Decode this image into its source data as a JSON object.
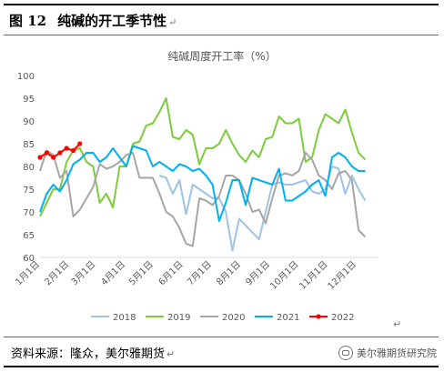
{
  "figure": {
    "number_label": "图 12",
    "title": "纯碱的开工季节性",
    "return_mark": "↵"
  },
  "source_note": {
    "text": "资料来源：隆众，美尔雅期货",
    "watermark": "美尔雅期货研究院"
  },
  "chart_data": {
    "type": "line",
    "title": "纯碱周度开工率（%）",
    "ylim": [
      60,
      100
    ],
    "yticks": [
      60,
      65,
      70,
      75,
      80,
      85,
      90,
      95,
      100
    ],
    "xlim": [
      1,
      52
    ],
    "xticks": [
      {
        "label": "1月1日",
        "week": 1
      },
      {
        "label": "2月1日",
        "week": 5.4
      },
      {
        "label": "3月1日",
        "week": 9.4
      },
      {
        "label": "4月1日",
        "week": 13.9
      },
      {
        "label": "5月1日",
        "week": 18.1
      },
      {
        "label": "6月1日",
        "week": 22.6
      },
      {
        "label": "7月1日",
        "week": 26.9
      },
      {
        "label": "8月1日",
        "week": 31.3
      },
      {
        "label": "9月1日",
        "week": 35.7
      },
      {
        "label": "10月1日",
        "week": 40.0
      },
      {
        "label": "11月1日",
        "week": 44.4
      },
      {
        "label": "12月1日",
        "week": 48.7
      }
    ],
    "legend_position": "bottom",
    "series": [
      {
        "name": "2018",
        "color": "#9dc3e6",
        "values": [
          null,
          null,
          null,
          null,
          null,
          null,
          null,
          null,
          null,
          null,
          null,
          null,
          null,
          null,
          null,
          null,
          null,
          null,
          78,
          77.5,
          74,
          77,
          69.5,
          76,
          75,
          74,
          73,
          73,
          70,
          61.5,
          68.5,
          67,
          65.5,
          64,
          70,
          76,
          76.5,
          76,
          76,
          76.5,
          77,
          74.5,
          74,
          75,
          80,
          79.5,
          74,
          78,
          75,
          72.5
        ]
      },
      {
        "name": "2019",
        "color": "#7ccc3c",
        "values": [
          69,
          72,
          75,
          75,
          81,
          83.5,
          84,
          81,
          80,
          72,
          74,
          71,
          80,
          80,
          85,
          85.5,
          89,
          89.5,
          92,
          95,
          86.5,
          86,
          88,
          87,
          80.5,
          84,
          84,
          85,
          88,
          85,
          82.5,
          81,
          83.5,
          82,
          86,
          86.5,
          91,
          89.5,
          89.5,
          90.5,
          81,
          82,
          88,
          91.5,
          90.5,
          89.5,
          92.5,
          87.5,
          83,
          81.5
        ]
      },
      {
        "name": "2020",
        "color": "#a6a6a6",
        "values": [
          79,
          83.5,
          82.5,
          77.5,
          79,
          69,
          70.5,
          73,
          75.5,
          80.5,
          79.5,
          80,
          81,
          82.5,
          83,
          77.5,
          77.5,
          77.5,
          74,
          70,
          69,
          66.5,
          63,
          62.5,
          73,
          72.5,
          71.5,
          73.5,
          78,
          78,
          77,
          74,
          70,
          70.5,
          67.5,
          73,
          78,
          78.5,
          78,
          79,
          83,
          81.5,
          78,
          77,
          75,
          78.5,
          79,
          77,
          66,
          64.5
        ]
      },
      {
        "name": "2021",
        "color": "#00b0f0",
        "values": [
          70,
          74,
          76,
          74.5,
          77,
          80.5,
          81.5,
          83,
          83,
          81,
          82,
          84,
          82,
          80,
          84.5,
          84,
          83.5,
          80,
          81,
          80,
          79,
          80.5,
          80,
          79,
          79.5,
          78,
          76,
          68,
          72,
          77,
          77,
          71.5,
          77.5,
          77,
          76.5,
          76,
          79.5,
          72.5,
          72.5,
          73.5,
          74.5,
          76,
          77,
          73.5,
          82,
          83,
          82,
          80,
          79,
          79
        ]
      },
      {
        "name": "2022",
        "color": "#ff0000",
        "values": [
          82,
          83,
          82,
          83,
          84,
          83.5,
          85
        ]
      }
    ]
  }
}
